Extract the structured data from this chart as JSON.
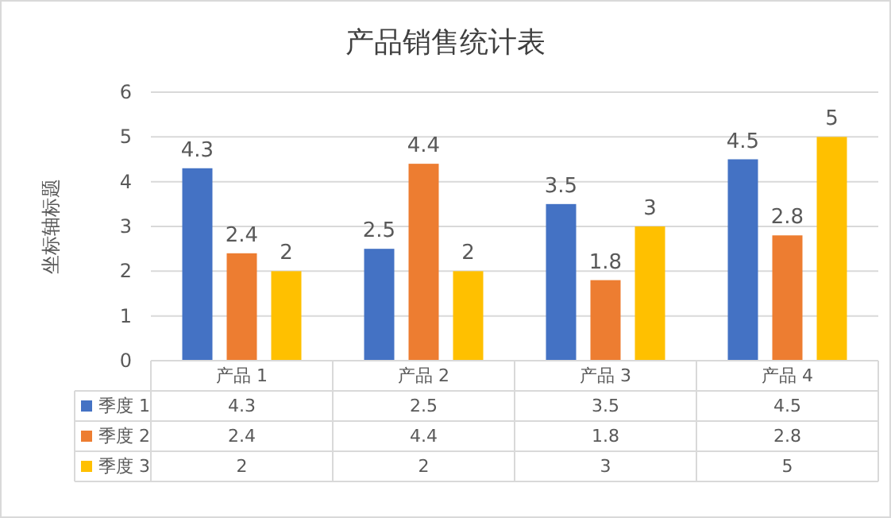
{
  "chart_data": {
    "type": "bar",
    "title": "产品销售统计表",
    "ylabel": "坐标轴标题",
    "categories": [
      "产品 1",
      "产品 2",
      "产品 3",
      "产品 4"
    ],
    "series": [
      {
        "name": "季度 1",
        "color": "#4472c4",
        "values": [
          4.3,
          2.5,
          3.5,
          4.5
        ]
      },
      {
        "name": "季度 2",
        "color": "#ed7d31",
        "values": [
          2.4,
          4.4,
          1.8,
          2.8
        ]
      },
      {
        "name": "季度 3",
        "color": "#ffc000",
        "values": [
          2,
          2,
          3,
          5
        ]
      }
    ],
    "annotations": [
      "4.3",
      "2.5",
      "3.5",
      "4.5",
      "2.4",
      "4.4",
      "1.8",
      "2.8",
      "2",
      "2",
      "3",
      "5"
    ],
    "ylim": [
      0,
      6
    ],
    "yticks": [
      0,
      1,
      2,
      3,
      4,
      5,
      6
    ],
    "grid": "y",
    "legend": "bottom",
    "data_labels": true
  }
}
